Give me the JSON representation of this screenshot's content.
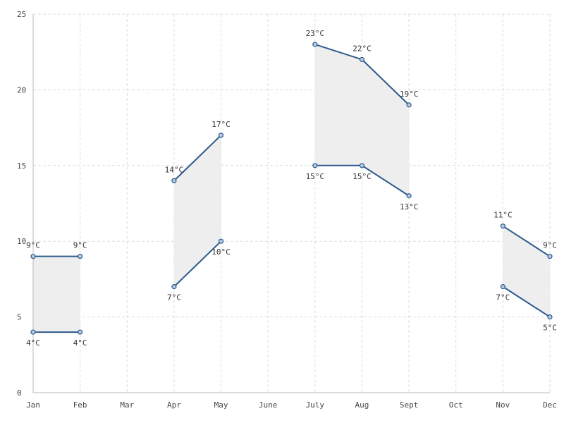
{
  "chart_data": {
    "type": "line",
    "title": "",
    "xlabel": "",
    "ylabel": "",
    "categories": [
      "Jan",
      "Feb",
      "Mar",
      "Apr",
      "May",
      "June",
      "July",
      "Aug",
      "Sept",
      "Oct",
      "Nov",
      "Dec"
    ],
    "ylim": [
      0,
      25
    ],
    "yticks": [
      0,
      5,
      10,
      15,
      20,
      25
    ],
    "grid": true,
    "legend": "none",
    "value_suffix": "°C",
    "series": [
      {
        "values": [
          9,
          9,
          null,
          14,
          17,
          null,
          23,
          22,
          19,
          null,
          11,
          9
        ]
      },
      {
        "values": [
          4,
          4,
          null,
          7,
          10,
          null,
          15,
          15,
          13,
          null,
          7,
          5
        ]
      }
    ],
    "colors": {
      "line": "#2c5a8c",
      "point_fill": "#b7cbe0",
      "band": "#eeeeee",
      "grid": "#dddddd"
    }
  }
}
